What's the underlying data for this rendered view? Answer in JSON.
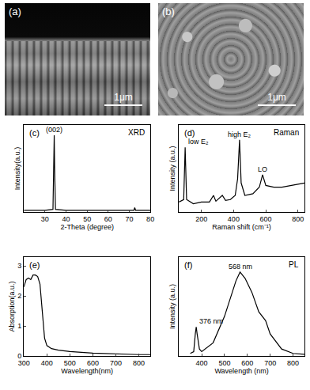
{
  "images": [
    {
      "panel": "(a)",
      "scale_bar": "1μm"
    },
    {
      "panel": "(b)",
      "scale_bar": "1μm"
    }
  ],
  "chart_data": [
    {
      "type": "line",
      "panel": "(c)",
      "title": "XRD",
      "x_label": "2-Theta (degree)",
      "y_label": "Intensity(a.u.)",
      "x": [
        20,
        30,
        33.8,
        34.2,
        34.4,
        34.6,
        35,
        40,
        50,
        60,
        70,
        72.2,
        72.6,
        73,
        80
      ],
      "values": [
        2,
        2,
        3,
        50,
        88,
        50,
        3,
        2,
        2,
        2,
        2,
        2,
        5,
        2,
        2
      ],
      "color": "#000000",
      "line_style": "solid",
      "xlim": [
        20,
        80
      ],
      "xticks": [
        30,
        40,
        50,
        60,
        70,
        80
      ],
      "ylim": [
        0,
        100
      ],
      "tick_labels": "x",
      "grid": false,
      "annotations": [
        {
          "text": "(002)",
          "x": 34.4,
          "y": 88
        }
      ]
    },
    {
      "type": "line",
      "panel": "(d)",
      "title": "Raman",
      "x_label": "Raman shift (cm⁻¹)",
      "y_label": "Intensity (a.u.)",
      "x": [
        60,
        90,
        99,
        108,
        150,
        200,
        250,
        275,
        290,
        330,
        350,
        380,
        410,
        425,
        437,
        447,
        470,
        520,
        560,
        580,
        600,
        650,
        700,
        750,
        800,
        840
      ],
      "values": [
        0.12,
        0.15,
        0.78,
        0.15,
        0.1,
        0.12,
        0.12,
        0.2,
        0.13,
        0.2,
        0.14,
        0.15,
        0.2,
        0.4,
        0.87,
        0.35,
        0.2,
        0.22,
        0.3,
        0.45,
        0.32,
        0.3,
        0.3,
        0.32,
        0.34,
        0.35
      ],
      "color": "#000000",
      "line_style": "solid",
      "xlim": [
        60,
        840
      ],
      "xticks": [
        200,
        400,
        600,
        800
      ],
      "ylim": [
        0,
        1.05
      ],
      "tick_labels": "x",
      "grid": false,
      "annotations": [
        {
          "text": "low E₂",
          "x": 99,
          "y": 0.78
        },
        {
          "text": "high E₂",
          "x": 437,
          "y": 0.87
        },
        {
          "text": "LO",
          "x": 580,
          "y": 0.45
        }
      ]
    },
    {
      "type": "line",
      "panel": "(e)",
      "x_label": "Wavelength(nm)",
      "y_label": "Absorption(a.u.)",
      "x": [
        300,
        310,
        320,
        330,
        340,
        350,
        360,
        370,
        380,
        390,
        400,
        420,
        450,
        500,
        600,
        700,
        800,
        850
      ],
      "values": [
        2.3,
        2.55,
        2.6,
        2.55,
        2.7,
        2.7,
        2.65,
        2.4,
        1.5,
        0.6,
        0.35,
        0.25,
        0.2,
        0.15,
        0.1,
        0.07,
        0.05,
        0.05
      ],
      "color": "#000000",
      "line_style": "solid",
      "xlim": [
        300,
        850
      ],
      "xticks": [
        300,
        400,
        500,
        600,
        700,
        800
      ],
      "ylim": [
        0,
        3.3
      ],
      "yticks": [
        0,
        1,
        2,
        3
      ],
      "grid": false
    },
    {
      "type": "line",
      "panel": "(f)",
      "title": "PL",
      "x_label": "Wavelength (nm)",
      "y_label": "Intensity (a.u.)",
      "x": [
        350,
        365,
        372,
        376,
        380,
        390,
        400,
        450,
        500,
        530,
        550,
        568,
        590,
        620,
        650,
        680,
        700,
        750,
        800,
        850
      ],
      "values": [
        0.03,
        0.05,
        0.25,
        0.33,
        0.25,
        0.08,
        0.05,
        0.15,
        0.45,
        0.7,
        0.85,
        0.95,
        0.88,
        0.72,
        0.5,
        0.4,
        0.25,
        0.08,
        0.03,
        0.02
      ],
      "color": "#000000",
      "line_style": "solid",
      "xlim": [
        300,
        850
      ],
      "xticks": [
        400,
        500,
        600,
        700,
        800
      ],
      "ylim": [
        0,
        1.12
      ],
      "tick_labels": "x",
      "grid": false,
      "annotations": [
        {
          "text": "376 nm",
          "x": 376,
          "y": 0.33
        },
        {
          "text": "568 nm",
          "x": 568,
          "y": 0.95
        }
      ]
    }
  ]
}
